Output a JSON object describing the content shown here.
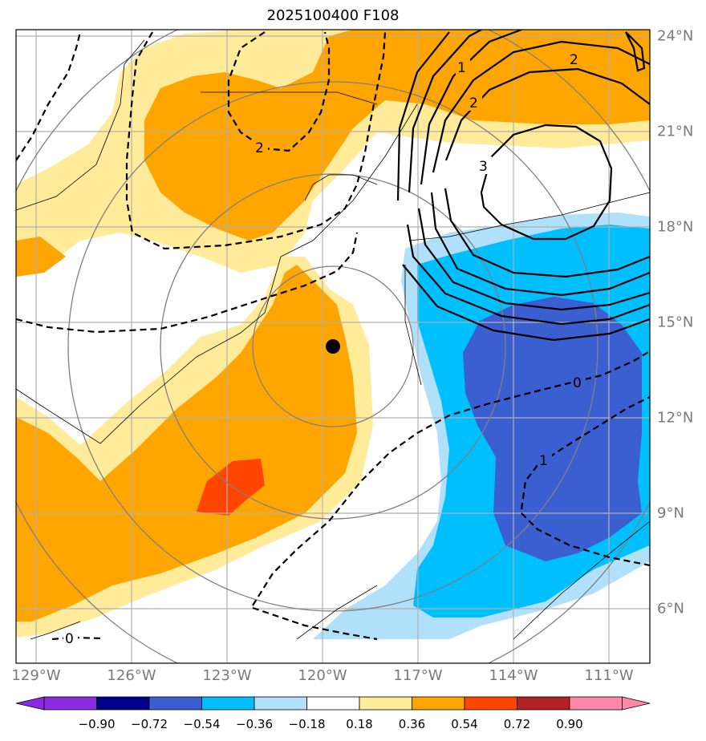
{
  "title": "2025100400 F108",
  "marker": "storm-center-dot",
  "colors": {
    "orange": "#ffa500",
    "light_yellow": "#ffeb99",
    "red_orange": "#ff4500",
    "cyan": "#00bfff",
    "light_blue": "#b0e0fa",
    "royal_blue": "#3b5fd0",
    "grid": "#b0b0b0"
  },
  "axes": {
    "lon_labels": [
      "129°W",
      "126°W",
      "123°W",
      "120°W",
      "117°W",
      "114°W",
      "111°W"
    ],
    "lat_labels": [
      "24°N",
      "21°N",
      "18°N",
      "15°N",
      "12°N",
      "9°N",
      "6°N"
    ]
  },
  "contour_labels": {
    "solid": [
      "1",
      "2",
      "2",
      "3"
    ],
    "dashed": [
      "2",
      "0",
      "1",
      "0"
    ]
  },
  "colorbar": {
    "ticks": [
      "−0.90",
      "−0.72",
      "−0.54",
      "−0.36",
      "−0.18",
      "0.18",
      "0.36",
      "0.54",
      "0.72",
      "0.90"
    ],
    "colors": [
      "#8a2be2",
      "#00008b",
      "#3b5fd0",
      "#00bfff",
      "#b0e0fa",
      "#ffffff",
      "#ffeb99",
      "#ffa500",
      "#ff4500",
      "#b22222",
      "#ff88aa"
    ]
  }
}
